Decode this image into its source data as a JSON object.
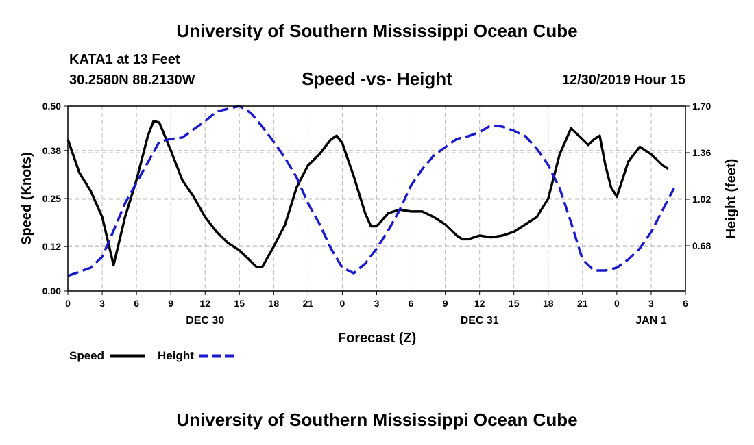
{
  "header": {
    "title": "University of Southern Mississippi Ocean Cube",
    "station": "KATA1 at 13 Feet",
    "coords": "30.2580N 88.2130W",
    "timestamp": "12/30/2019 Hour 15"
  },
  "footer": {
    "title": "University of Southern Mississippi Ocean Cube"
  },
  "chart_data": {
    "type": "line",
    "title": "Speed -vs- Height",
    "xlabel": "Forecast (Z)",
    "ylabel_left": "Speed (Knots)",
    "ylabel_right": "Height (feet)",
    "x_range_hours": [
      0,
      54
    ],
    "x_tick_labels": [
      "0",
      "3",
      "6",
      "9",
      "12",
      "15",
      "18",
      "21",
      "0",
      "3",
      "6",
      "9",
      "12",
      "15",
      "18",
      "21",
      "0",
      "3",
      "6"
    ],
    "day_labels": [
      {
        "label": "DEC 30",
        "hour": 12
      },
      {
        "label": "DEC 31",
        "hour": 36
      },
      {
        "label": "JAN 1",
        "hour": 51
      }
    ],
    "y_left": {
      "range": [
        0,
        0.5
      ],
      "ticks": [
        0.5,
        0.38,
        0.25,
        0.12,
        0.0
      ],
      "tick_labels": [
        "0.50",
        "0.38",
        "0.25",
        "0.12",
        "0.00"
      ]
    },
    "y_right": {
      "range": [
        0.35,
        1.7
      ],
      "ticks": [
        1.7,
        1.36,
        1.02,
        0.68
      ],
      "tick_labels": [
        "1.70",
        "1.36",
        "1.02",
        "0.68"
      ]
    },
    "grid": true,
    "legend": {
      "position": "bottom-left",
      "speed_label": "Speed",
      "height_label": "Height"
    },
    "series": [
      {
        "name": "Speed",
        "axis": "left",
        "color": "#000000",
        "style": "solid",
        "points": [
          [
            0,
            0.41
          ],
          [
            1,
            0.32
          ],
          [
            2,
            0.27
          ],
          [
            3,
            0.2
          ],
          [
            4,
            0.07
          ],
          [
            5,
            0.2
          ],
          [
            6,
            0.3
          ],
          [
            7,
            0.42
          ],
          [
            7.5,
            0.46
          ],
          [
            8,
            0.455
          ],
          [
            9,
            0.38
          ],
          [
            10,
            0.3
          ],
          [
            11,
            0.255
          ],
          [
            12,
            0.2
          ],
          [
            13,
            0.16
          ],
          [
            14,
            0.13
          ],
          [
            15,
            0.11
          ],
          [
            16,
            0.08
          ],
          [
            16.5,
            0.065
          ],
          [
            17,
            0.065
          ],
          [
            18,
            0.12
          ],
          [
            19,
            0.18
          ],
          [
            20,
            0.28
          ],
          [
            21,
            0.34
          ],
          [
            22,
            0.37
          ],
          [
            23,
            0.41
          ],
          [
            23.5,
            0.42
          ],
          [
            24,
            0.4
          ],
          [
            25,
            0.31
          ],
          [
            26,
            0.21
          ],
          [
            26.5,
            0.175
          ],
          [
            27,
            0.175
          ],
          [
            28,
            0.21
          ],
          [
            29,
            0.22
          ],
          [
            30,
            0.215
          ],
          [
            31,
            0.215
          ],
          [
            32,
            0.2
          ],
          [
            33,
            0.18
          ],
          [
            34,
            0.15
          ],
          [
            34.5,
            0.14
          ],
          [
            35,
            0.14
          ],
          [
            36,
            0.15
          ],
          [
            37,
            0.145
          ],
          [
            38,
            0.15
          ],
          [
            39,
            0.16
          ],
          [
            40,
            0.18
          ],
          [
            41,
            0.2
          ],
          [
            42,
            0.25
          ],
          [
            43,
            0.37
          ],
          [
            44,
            0.44
          ],
          [
            45,
            0.41
          ],
          [
            45.5,
            0.395
          ],
          [
            46,
            0.41
          ],
          [
            46.5,
            0.42
          ],
          [
            47,
            0.34
          ],
          [
            47.5,
            0.28
          ],
          [
            48,
            0.255
          ],
          [
            49,
            0.35
          ],
          [
            50,
            0.39
          ],
          [
            51,
            0.37
          ],
          [
            52,
            0.34
          ],
          [
            52.5,
            0.33
          ]
        ]
      },
      {
        "name": "Height",
        "axis": "right",
        "color": "#1a1acc",
        "style": "dashed",
        "points": [
          [
            0,
            0.46
          ],
          [
            1,
            0.49
          ],
          [
            2,
            0.52
          ],
          [
            3,
            0.6
          ],
          [
            4,
            0.79
          ],
          [
            5,
            0.99
          ],
          [
            6,
            1.14
          ],
          [
            7,
            1.29
          ],
          [
            8,
            1.44
          ],
          [
            9,
            1.46
          ],
          [
            10,
            1.47
          ],
          [
            11,
            1.53
          ],
          [
            12,
            1.59
          ],
          [
            13,
            1.66
          ],
          [
            14,
            1.68
          ],
          [
            15,
            1.7
          ],
          [
            16,
            1.65
          ],
          [
            17,
            1.55
          ],
          [
            18,
            1.44
          ],
          [
            19,
            1.32
          ],
          [
            20,
            1.18
          ],
          [
            21,
            0.99
          ],
          [
            22,
            0.84
          ],
          [
            23,
            0.66
          ],
          [
            24,
            0.52
          ],
          [
            25,
            0.48
          ],
          [
            26,
            0.55
          ],
          [
            27,
            0.66
          ],
          [
            28,
            0.79
          ],
          [
            29,
            0.94
          ],
          [
            30,
            1.12
          ],
          [
            31,
            1.24
          ],
          [
            32,
            1.34
          ],
          [
            33,
            1.4
          ],
          [
            34,
            1.46
          ],
          [
            35,
            1.48
          ],
          [
            36,
            1.51
          ],
          [
            37,
            1.56
          ],
          [
            38,
            1.55
          ],
          [
            39,
            1.52
          ],
          [
            40,
            1.48
          ],
          [
            41,
            1.39
          ],
          [
            42,
            1.27
          ],
          [
            43,
            1.1
          ],
          [
            44,
            0.85
          ],
          [
            45,
            0.58
          ],
          [
            46,
            0.5
          ],
          [
            47,
            0.5
          ],
          [
            48,
            0.52
          ],
          [
            49,
            0.58
          ],
          [
            50,
            0.66
          ],
          [
            51,
            0.78
          ],
          [
            52,
            0.94
          ],
          [
            53,
            1.1
          ]
        ]
      }
    ]
  }
}
